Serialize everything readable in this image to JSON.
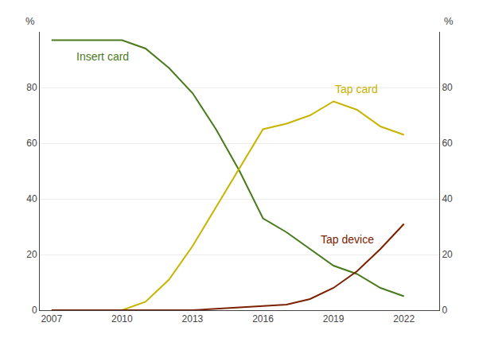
{
  "chart_data": {
    "type": "line",
    "ylabel": "%",
    "y2label": "%",
    "series": [
      {
        "name": "Insert card",
        "color": "#4a7a1e",
        "x": [
          2007,
          2008,
          2009,
          2010,
          2011,
          2012,
          2013,
          2014,
          2015,
          2016,
          2017,
          2018,
          2019,
          2020,
          2021,
          2022
        ],
        "values": [
          97,
          97,
          97,
          97,
          94,
          87,
          78,
          65,
          50,
          33,
          28,
          22,
          16,
          13,
          8,
          5
        ]
      },
      {
        "name": "Tap card",
        "color": "#c8b400",
        "x": [
          2010,
          2011,
          2012,
          2013,
          2014,
          2015,
          2016,
          2017,
          2018,
          2019,
          2020,
          2021,
          2022
        ],
        "values": [
          0,
          3,
          11,
          23,
          37,
          51,
          65,
          67,
          70,
          75,
          72,
          66,
          63
        ]
      },
      {
        "name": "Tap device",
        "color": "#7b2000",
        "x": [
          2007,
          2008,
          2009,
          2010,
          2011,
          2012,
          2013,
          2014,
          2015,
          2016,
          2017,
          2018,
          2019,
          2020,
          2021,
          2022
        ],
        "values": [
          0,
          0,
          0,
          0,
          0,
          0,
          0,
          0.5,
          1,
          1.5,
          2,
          4,
          8,
          14,
          22,
          31
        ]
      }
    ],
    "xlim": [
      2006.5,
      2023.5
    ],
    "xticks": [
      2007,
      2010,
      2013,
      2016,
      2019,
      2022
    ],
    "ylim": [
      0,
      100
    ],
    "yticks": [
      0,
      20,
      40,
      60,
      80
    ],
    "y2lim": [
      0,
      100
    ],
    "y2ticks": [
      0,
      20,
      40,
      60,
      80
    ],
    "grid": true
  }
}
